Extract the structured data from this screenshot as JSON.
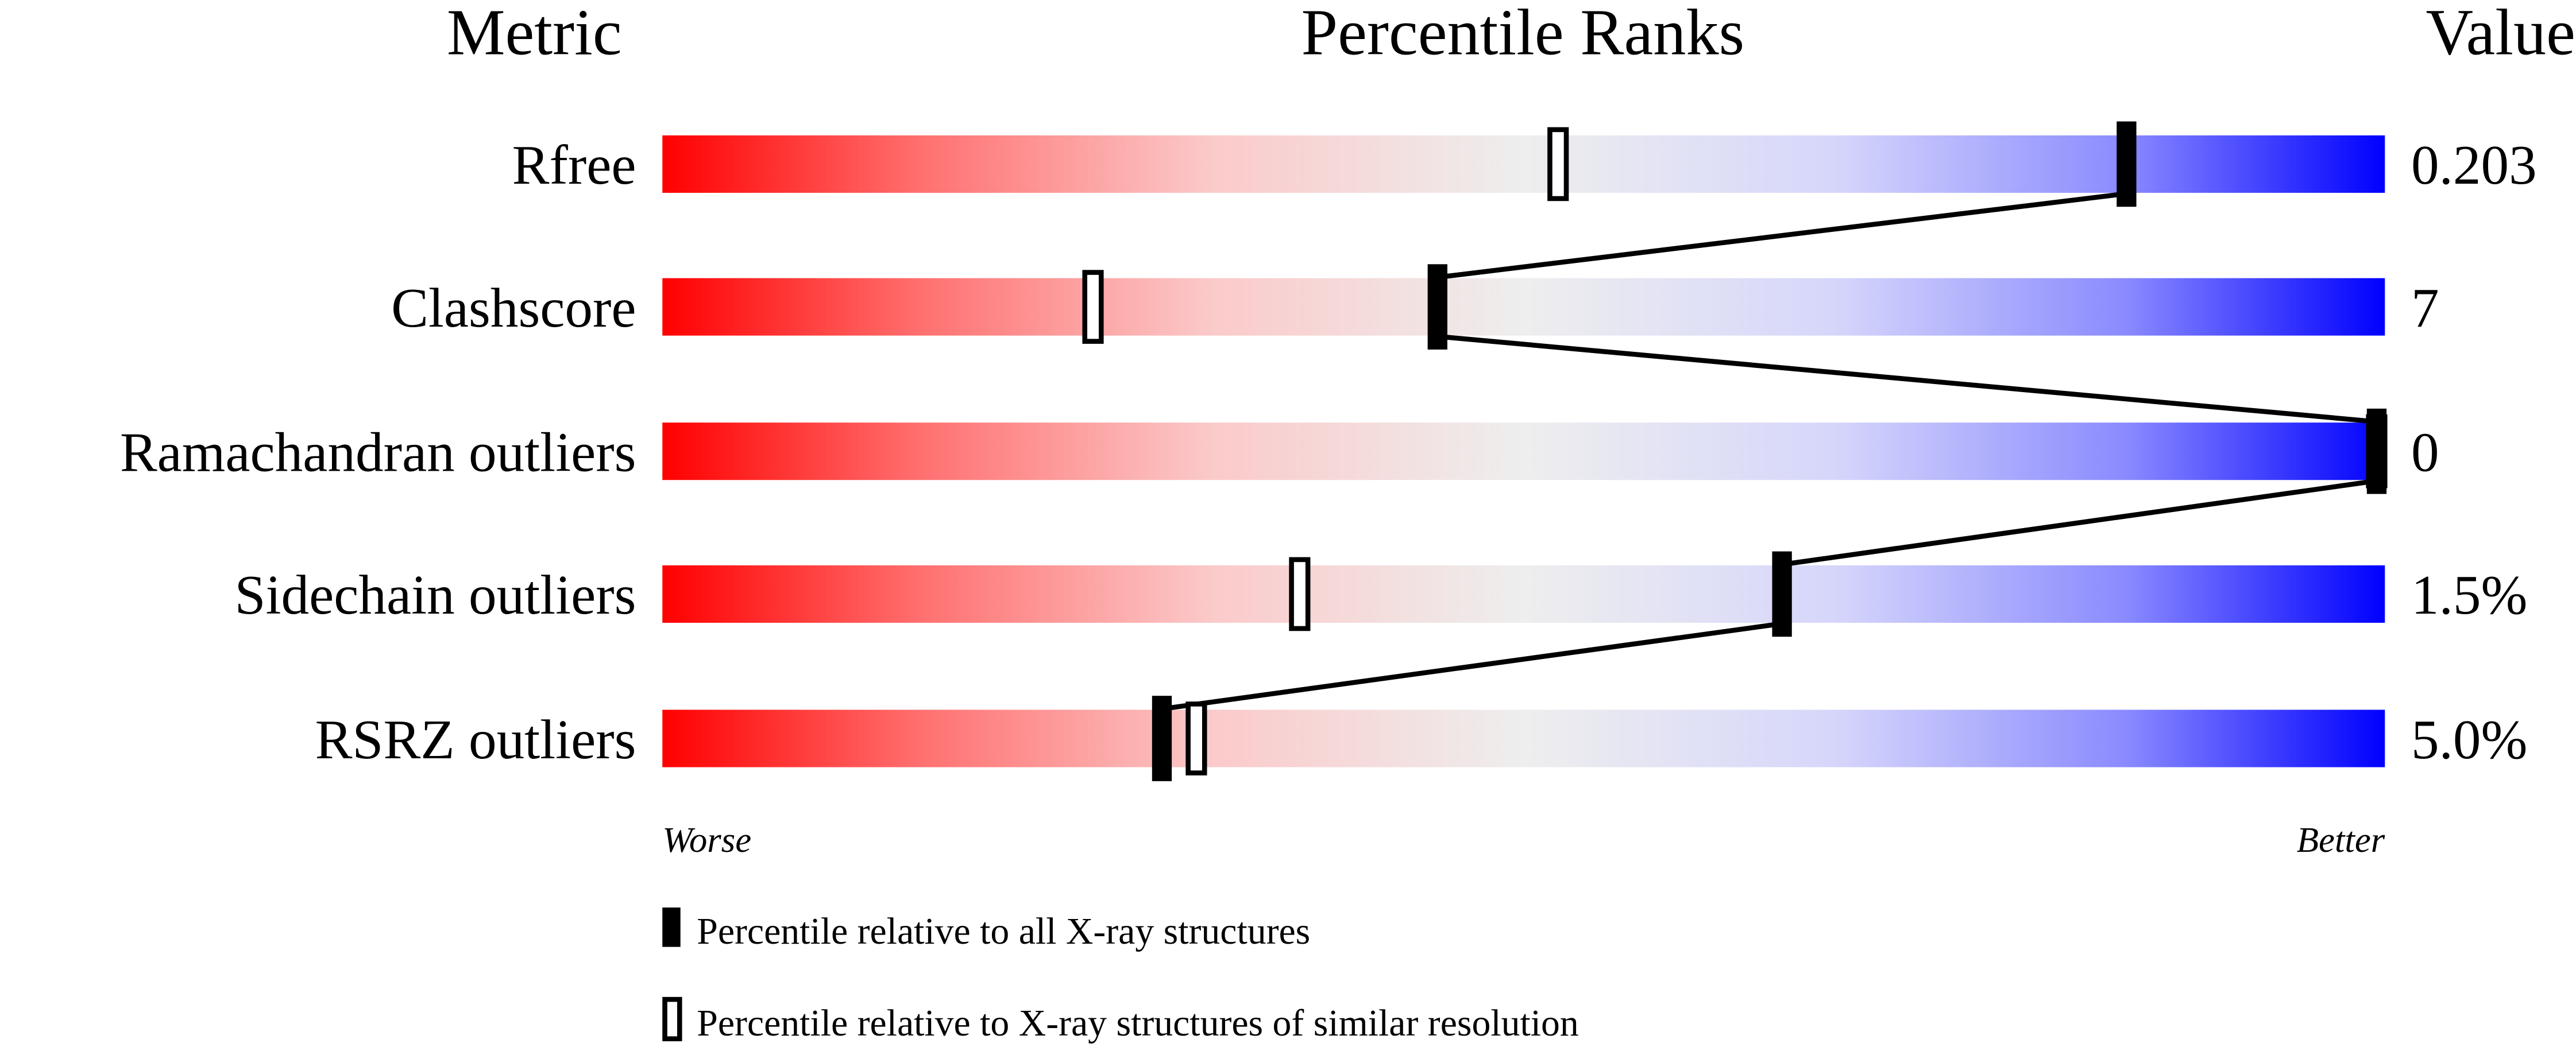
{
  "chart_data": {
    "type": "percentile-slider",
    "headers": {
      "metric": "Metric",
      "percentile": "Percentile Ranks",
      "value": "Value"
    },
    "axis": {
      "left": "Worse",
      "right": "Better",
      "range": [
        0,
        100
      ]
    },
    "gradient_colors": [
      "#ff0000",
      "#eeeeee",
      "#0000ff"
    ],
    "metrics": [
      {
        "name": "Rfree",
        "value": "0.203",
        "percentile_all": 85,
        "percentile_similar": 52
      },
      {
        "name": "Clashscore",
        "value": "7",
        "percentile_all": 45,
        "percentile_similar": 25
      },
      {
        "name": "Ramachandran outliers",
        "value": "0",
        "percentile_all": 100,
        "percentile_similar": 100
      },
      {
        "name": "Sidechain outliers",
        "value": "1.5%",
        "percentile_all": 65,
        "percentile_similar": 37
      },
      {
        "name": "RSRZ outliers",
        "value": "5.0%",
        "percentile_all": 29,
        "percentile_similar": 31
      }
    ],
    "legend": {
      "all": "Percentile relative to all X-ray structures",
      "similar": "Percentile relative to X-ray structures of similar resolution"
    }
  }
}
